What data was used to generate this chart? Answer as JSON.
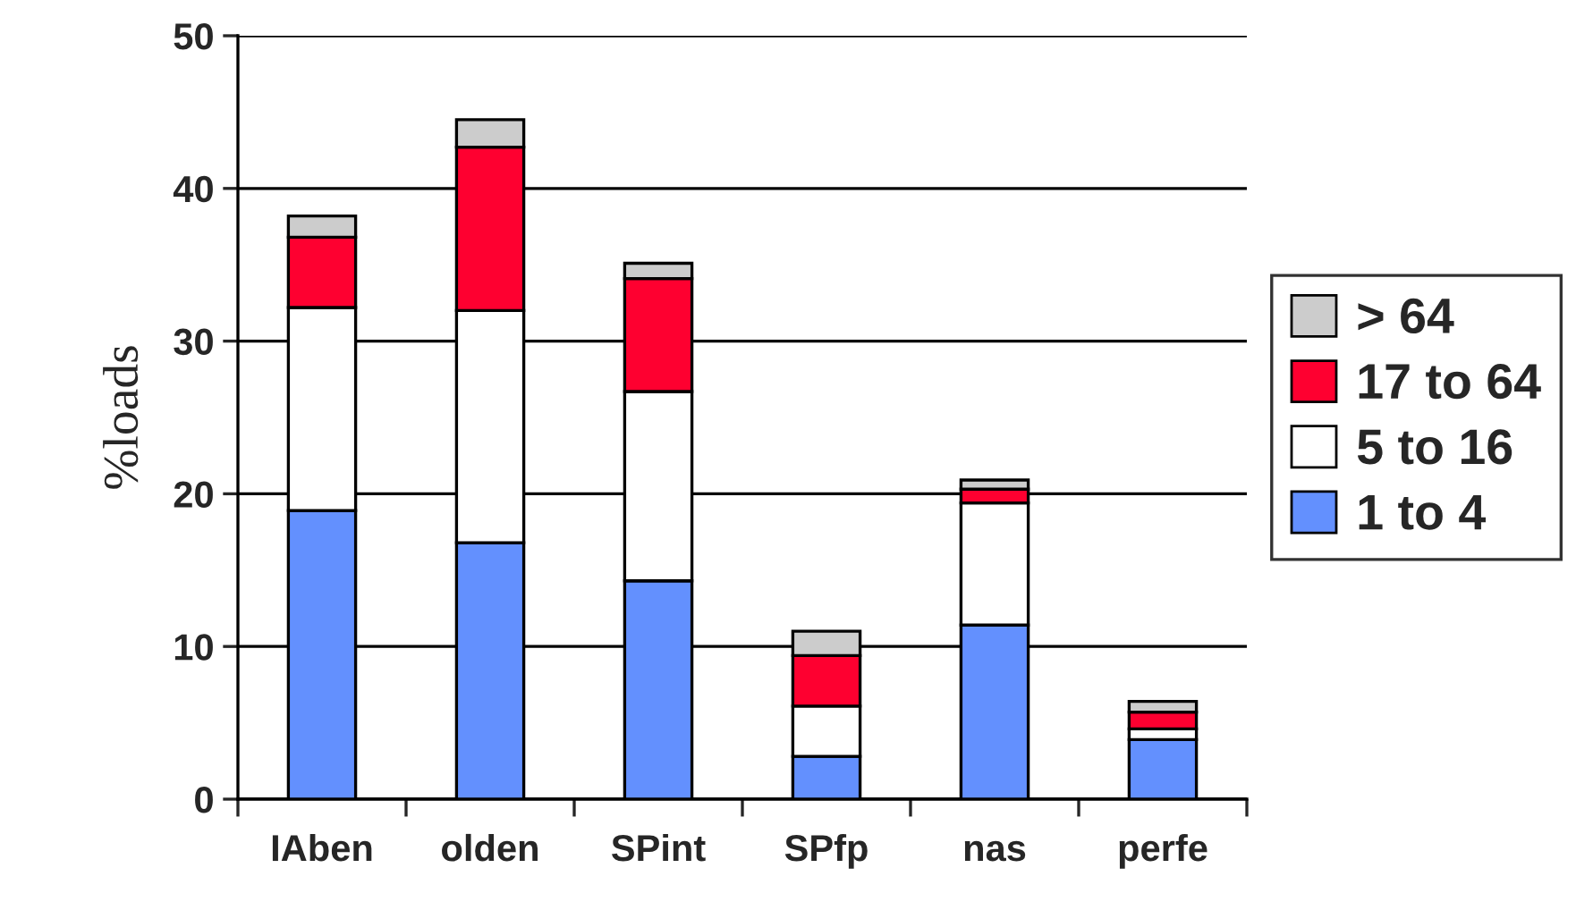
{
  "chart_data": {
    "type": "bar",
    "stacked": true,
    "ylabel": "%loads",
    "categories": [
      "IAben",
      "olden",
      "SPint",
      "SPfp",
      "nas",
      "perfe"
    ],
    "series": [
      {
        "name": "1 to 4",
        "color": "#6390fe",
        "values": [
          18.9,
          16.8,
          14.3,
          2.8,
          11.4,
          3.9
        ]
      },
      {
        "name": "5 to 16",
        "color": "#ffffff",
        "values": [
          13.3,
          15.2,
          12.4,
          3.3,
          8.0,
          0.7
        ]
      },
      {
        "name": "17 to 64",
        "color": "#fe0030",
        "values": [
          4.6,
          10.7,
          7.4,
          3.3,
          0.9,
          1.1
        ]
      },
      {
        "name": "> 64",
        "color": "#cccccc",
        "values": [
          1.4,
          1.8,
          1.0,
          1.6,
          0.6,
          0.7
        ]
      }
    ],
    "ylim": [
      0,
      50
    ],
    "yticks": [
      0,
      10,
      20,
      30,
      40,
      50
    ],
    "grid": "y",
    "legend": "right"
  }
}
